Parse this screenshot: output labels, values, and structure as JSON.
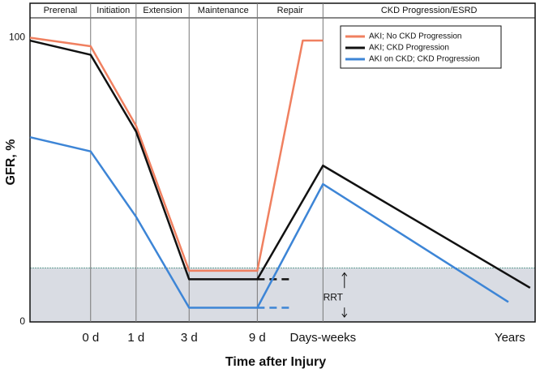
{
  "chart_data": {
    "type": "line",
    "x_label": "Time after Injury",
    "y_label": "GFR, %",
    "xlim": [
      0,
      100
    ],
    "ylim": [
      0,
      107
    ],
    "xticks": [
      {
        "value": 12,
        "label": "0 d"
      },
      {
        "value": 21,
        "label": "1 d"
      },
      {
        "value": 31.5,
        "label": "3 d"
      },
      {
        "value": 45,
        "label": "9 d"
      },
      {
        "value": 58,
        "label": "Days-weeks"
      },
      {
        "value": 95,
        "label": "Years"
      }
    ],
    "yticks": [
      0,
      100
    ],
    "phases": [
      {
        "label": "Prerenal",
        "start": 0,
        "end": 12
      },
      {
        "label": "Initiation",
        "start": 12,
        "end": 21
      },
      {
        "label": "Extension",
        "start": 21,
        "end": 31.5
      },
      {
        "label": "Maintenance",
        "start": 31.5,
        "end": 45
      },
      {
        "label": "Repair",
        "start": 45,
        "end": 58
      },
      {
        "label": "CKD Progression/ESRD",
        "start": 58,
        "end": 100
      }
    ],
    "rrt_band": {
      "label": "RRT",
      "range": [
        0,
        19
      ],
      "color": "#d9dce3",
      "label_x": 60,
      "label_y": 8.5
    },
    "series": [
      {
        "name": "AKI; No CKD Progression",
        "color": "#f08060",
        "x": [
          0,
          12,
          21,
          31.5,
          45,
          54,
          58
        ],
        "values": [
          100,
          97,
          69,
          18,
          18,
          99,
          99
        ]
      },
      {
        "name": "AKI; CKD Progression",
        "color": "#111111",
        "x": [
          0,
          12,
          21,
          31.5,
          45,
          58,
          99
        ],
        "values": [
          99,
          94,
          67,
          15,
          15,
          55,
          12
        ]
      },
      {
        "name": "AKI on CKD; CKD Progression",
        "color": "#3d85d6",
        "x": [
          0,
          12,
          21,
          31.5,
          45,
          58,
          94.7
        ],
        "values": [
          65,
          60,
          37,
          5,
          5,
          48.5,
          7
        ]
      }
    ],
    "dashed": [
      {
        "color": "#111111",
        "x": [
          45,
          52
        ],
        "values": [
          15,
          15
        ]
      },
      {
        "color": "#3d85d6",
        "x": [
          45,
          52
        ],
        "values": [
          5,
          5
        ]
      }
    ]
  }
}
